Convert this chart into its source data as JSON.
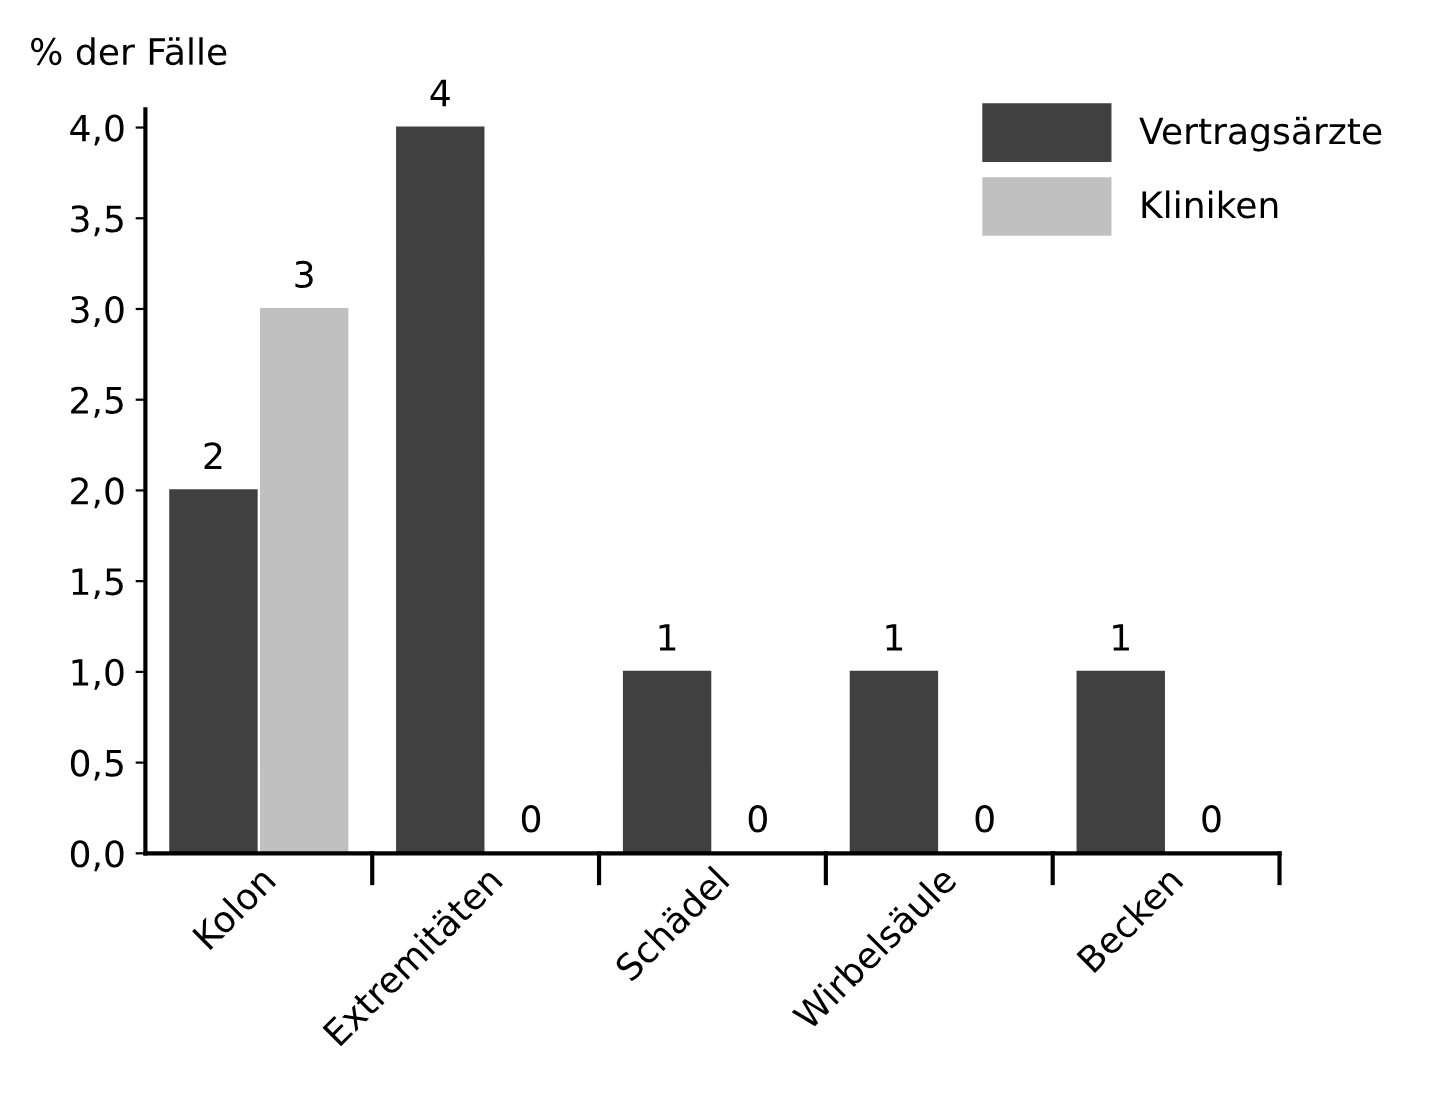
{
  "chart_data": {
    "type": "bar",
    "ylabel": "% der Fälle",
    "categories": [
      "Kolon",
      "Extremitäten",
      "Schädel",
      "Wirbelsäule",
      "Becken"
    ],
    "series": [
      {
        "name": "Vertragsärzte",
        "color": "#404040",
        "values": [
          2,
          4,
          1,
          1,
          1
        ]
      },
      {
        "name": "Kliniken",
        "color": "#c0c0c0",
        "values": [
          3,
          0,
          0,
          0,
          0
        ]
      }
    ],
    "ylim": [
      0,
      4.1
    ],
    "yticks": [
      {
        "value": 0,
        "label": "0,0"
      },
      {
        "value": 0.5,
        "label": "0,5"
      },
      {
        "value": 1,
        "label": "1,0"
      },
      {
        "value": 1.5,
        "label": "1,5"
      },
      {
        "value": 2,
        "label": "2,0"
      },
      {
        "value": 2.5,
        "label": "2,5"
      },
      {
        "value": 3,
        "label": "3,0"
      },
      {
        "value": 3.5,
        "label": "3,5"
      },
      {
        "value": 4,
        "label": "4,0"
      }
    ],
    "data_labels": true,
    "grid": false,
    "legend": "top right"
  }
}
